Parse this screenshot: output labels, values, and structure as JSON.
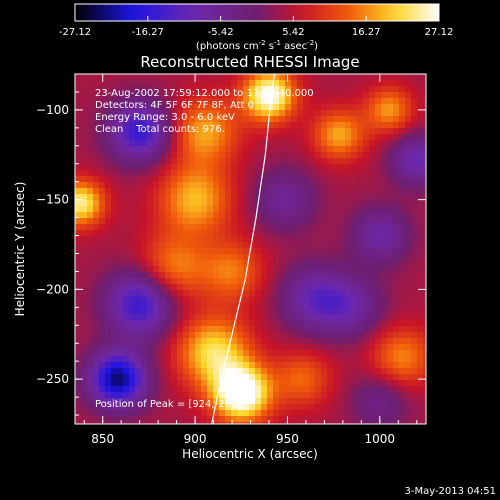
{
  "chart_data": {
    "type": "heatmap",
    "title": "Reconstructed RHESSI Image",
    "xlabel": "Heliocentric X (arcsec)",
    "ylabel": "Heliocentric Y (arcsec)",
    "xlim": [
      835,
      1025
    ],
    "ylim": [
      -275,
      -80
    ],
    "x_ticks": [
      850,
      900,
      950,
      1000
    ],
    "y_ticks": [
      -100,
      -150,
      -200,
      -250
    ],
    "colorbar": {
      "min": -27.12,
      "max": 27.12,
      "ticks": [
        "-27.12",
        "-16.27",
        "-5.42",
        "5.42",
        "16.27",
        "27.12"
      ],
      "unit_label": "(photons cm",
      "unit_sup1": "-2",
      "unit_mid": " s",
      "unit_sup2": "-1",
      "unit_end": " asec",
      "unit_sup3": "-2",
      "unit_close": ")",
      "palette": "black-blue-purple-red-orange-yellow-white"
    },
    "annotations": [
      "23-Aug-2002 17:59:12.000 to 17:59:40.000",
      "Detectors: 4F 5F 6F 7F 8F, Att 0",
      "Energy Range: 3.0 - 6.0 keV",
      "Clean    Total counts: 976.",
      "Position of Peak = [924,-260]"
    ],
    "limb": [
      [
        909,
        -275
      ],
      [
        913,
        -255
      ],
      [
        920,
        -225
      ],
      [
        927,
        -195
      ],
      [
        933,
        -160
      ],
      [
        938,
        -125
      ],
      [
        941,
        -95
      ],
      [
        943,
        -80
      ]
    ],
    "features": [
      {
        "x": 925,
        "y": -258,
        "value": 27.0,
        "sigma": 11
      },
      {
        "x": 910,
        "y": -235,
        "value": 18.0,
        "sigma": 14
      },
      {
        "x": 940,
        "y": -92,
        "value": 24.0,
        "sigma": 10
      },
      {
        "x": 905,
        "y": -112,
        "value": 14.0,
        "sigma": 13
      },
      {
        "x": 838,
        "y": -152,
        "value": 20.0,
        "sigma": 9
      },
      {
        "x": 900,
        "y": -150,
        "value": 15.0,
        "sigma": 14
      },
      {
        "x": 888,
        "y": -188,
        "value": 12.0,
        "sigma": 13
      },
      {
        "x": 920,
        "y": -190,
        "value": 11.0,
        "sigma": 12
      },
      {
        "x": 978,
        "y": -114,
        "value": 14.0,
        "sigma": 10
      },
      {
        "x": 1005,
        "y": -100,
        "value": 13.0,
        "sigma": 9
      },
      {
        "x": 1012,
        "y": -238,
        "value": 12.0,
        "sigma": 12
      },
      {
        "x": 958,
        "y": -250,
        "value": 10.0,
        "sigma": 11
      },
      {
        "x": 858,
        "y": -250,
        "value": -27.0,
        "sigma": 11
      },
      {
        "x": 870,
        "y": -112,
        "value": -20.0,
        "sigma": 12
      },
      {
        "x": 870,
        "y": -208,
        "value": -20.0,
        "sigma": 13
      },
      {
        "x": 965,
        "y": -205,
        "value": -14.0,
        "sigma": 13
      },
      {
        "x": 985,
        "y": -210,
        "value": -10.0,
        "sigma": 12
      },
      {
        "x": 1000,
        "y": -170,
        "value": -12.0,
        "sigma": 11
      },
      {
        "x": 948,
        "y": -150,
        "value": -10.0,
        "sigma": 12
      },
      {
        "x": 1020,
        "y": -128,
        "value": -14.0,
        "sigma": 10
      },
      {
        "x": 1000,
        "y": -262,
        "value": -8.0,
        "sigma": 11
      }
    ]
  },
  "footer": {
    "timestamp": "3-May-2013 04:51"
  }
}
